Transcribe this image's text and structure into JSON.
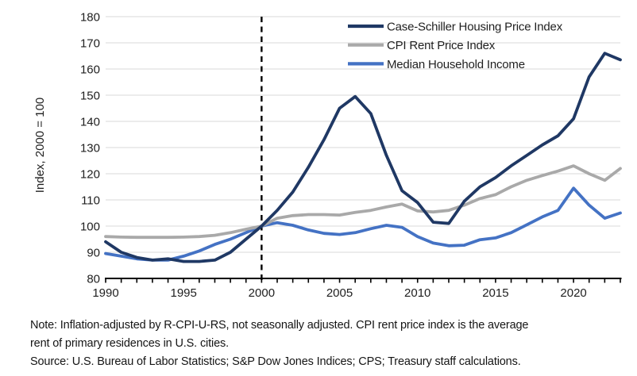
{
  "notes": {
    "line1": "Note: Inflation-adjusted by R-CPI-U-RS, not seasonally adjusted. CPI rent price index is the average",
    "line2": "rent of primary residences in U.S. cities.",
    "source": "Source: U.S. Bureau of Labor Statistics; S&P Dow Jones Indices; CPS; Treasury staff calculations."
  },
  "colors": {
    "axis": "#000000",
    "gridline": "#D9D9D9",
    "text": "#1f1f1f",
    "reference_line": "#000000"
  },
  "chart_data": {
    "type": "line",
    "title": "",
    "xlabel": "",
    "ylabel": "Index, 2000 = 100",
    "ylim": [
      80,
      180
    ],
    "y_ticks": [
      80,
      90,
      100,
      110,
      120,
      130,
      140,
      150,
      160,
      170,
      180
    ],
    "x_tick_labels": [
      1990,
      1995,
      2000,
      2005,
      2010,
      2015,
      2020
    ],
    "x_range": [
      1990,
      2023
    ],
    "grid": "horizontal",
    "legend_position": "top-right-inside",
    "reference_line_x": 2000,
    "reference_line_style": "dashed black vertical",
    "x": [
      1990,
      1991,
      1992,
      1993,
      1994,
      1995,
      1996,
      1997,
      1998,
      1999,
      2000,
      2001,
      2002,
      2003,
      2004,
      2005,
      2006,
      2007,
      2008,
      2009,
      2010,
      2011,
      2012,
      2013,
      2014,
      2015,
      2016,
      2017,
      2018,
      2019,
      2020,
      2021,
      2022,
      2023
    ],
    "series": [
      {
        "name": "Case-Schiller Housing Price Index",
        "color": "#1F3864",
        "values": [
          94,
          90,
          88,
          87,
          87.5,
          86.5,
          86.5,
          87,
          90,
          95,
          100,
          106,
          113,
          122.5,
          133,
          145,
          149.5,
          143,
          127,
          113.5,
          109,
          101.5,
          101,
          109.5,
          115,
          118.5,
          123,
          127,
          131,
          134.5,
          141,
          157,
          166,
          163.5
        ]
      },
      {
        "name": "CPI Rent Price Index",
        "color": "#A9A9A9",
        "values": [
          96,
          95.8,
          95.7,
          95.7,
          95.7,
          95.8,
          96,
          96.5,
          97.5,
          98.8,
          100,
          103,
          104,
          104.4,
          104.4,
          104.2,
          105.2,
          106,
          107.3,
          108.4,
          105.8,
          105.4,
          106,
          108,
          110.5,
          112,
          115,
          117.5,
          119.3,
          121,
          123,
          120,
          117.5,
          122
        ]
      },
      {
        "name": "Median Household Income",
        "color": "#4472C4",
        "values": [
          89.5,
          88.5,
          87.5,
          87,
          87,
          88.5,
          90.5,
          93,
          95,
          97.5,
          100,
          101.3,
          100.3,
          98.5,
          97.2,
          96.8,
          97.5,
          99,
          100.3,
          99.5,
          96,
          93.5,
          92.5,
          92.7,
          94.8,
          95.5,
          97.5,
          100.5,
          103.5,
          106,
          114.5,
          108,
          103,
          105
        ]
      }
    ]
  }
}
